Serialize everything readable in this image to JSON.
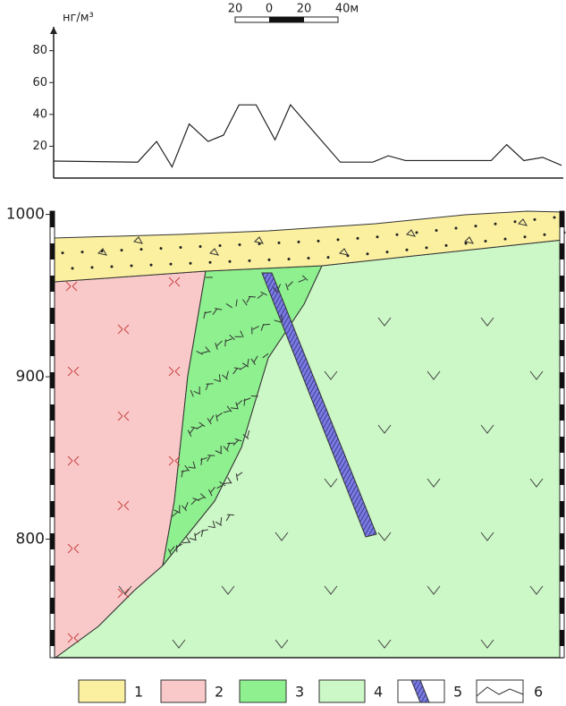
{
  "chart_data": [
    {
      "type": "line",
      "y_label": "нг/м³",
      "x": [
        0,
        49,
        60,
        69,
        79,
        90,
        99,
        108,
        118,
        129,
        138,
        167,
        186,
        195,
        205,
        255,
        264,
        274,
        285,
        296
      ],
      "values": [
        10.7,
        10,
        23,
        7,
        34,
        23,
        27,
        46,
        46,
        24,
        46,
        10,
        10,
        14,
        11,
        11,
        21,
        11,
        13,
        8
      ],
      "color": "#222222",
      "xlim": [
        0,
        297
      ],
      "ylim": [
        0,
        95
      ],
      "yticks": [
        20,
        40,
        60,
        80
      ]
    },
    {
      "type": "section",
      "ylim": [
        727,
        1002
      ],
      "yticks": [
        800,
        900,
        1000
      ]
    }
  ],
  "scale_bar": [
    "20",
    "0",
    "20",
    "40м"
  ],
  "legend": [
    "1",
    "2",
    "3",
    "4",
    "5",
    "6"
  ]
}
